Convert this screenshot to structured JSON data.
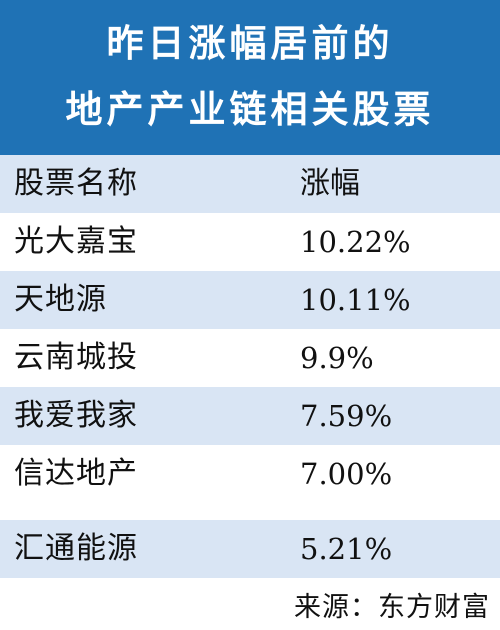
{
  "chart_data": {
    "type": "table",
    "title_lines": [
      "昨日涨幅居前的",
      "地产产业链相关股票"
    ],
    "columns": [
      "股票名称",
      "涨幅"
    ],
    "rows": [
      {
        "name": "光大嘉宝",
        "change": "10.22%"
      },
      {
        "name": "天地源",
        "change": "10.11%"
      },
      {
        "name": "云南城投",
        "change": "9.9%"
      },
      {
        "name": "我爱我家",
        "change": "7.59%"
      },
      {
        "name": "信达地产",
        "change": "7.00%"
      },
      {
        "name": "汇通能源",
        "change": "5.21%"
      }
    ],
    "source": "来源：东方财富"
  },
  "colors": {
    "title_bg": "#1f72b5",
    "title_text": "#ffffff",
    "row_shade": "#d9e5f4",
    "text": "#111111"
  }
}
